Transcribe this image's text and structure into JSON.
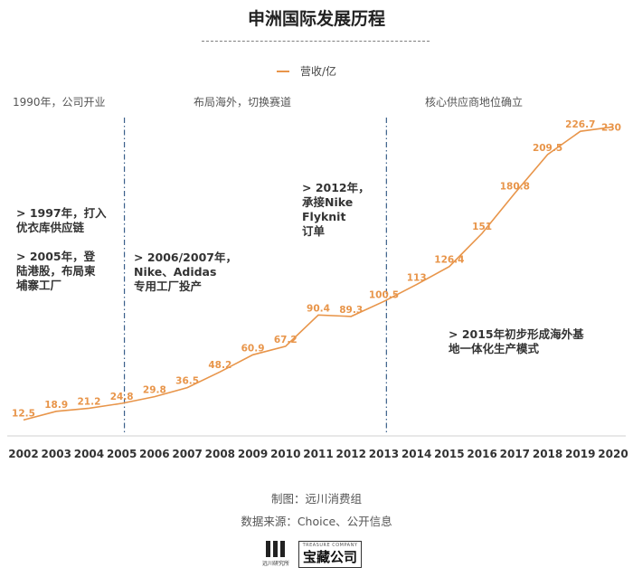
{
  "title": "申洲国际发展历程",
  "legend": {
    "label": "营收/亿",
    "color": "#e8954a"
  },
  "phases": [
    {
      "label": "1990年，公司开业"
    },
    {
      "label": "布局海外，切换赛道"
    },
    {
      "label": "核心供应商地位确立"
    }
  ],
  "notes": [
    {
      "text": "> 1997年，打入\n优衣库供应链"
    },
    {
      "text": ">  2005年，登\n陆港股，布局柬\n埔寨工厂"
    },
    {
      "text": "> 2006/2007年，\nNike、Adidas\n专用工厂投产"
    },
    {
      "text": "> 2012年，\n承接Nike\nFlyknit\n订单"
    },
    {
      "text": "> 2015年初步形成海外基\n地一体化生产模式"
    }
  ],
  "chart_data": {
    "type": "line",
    "title": "申洲国际发展历程",
    "series_name": "营收/亿",
    "categories": [
      "2002",
      "2003",
      "2004",
      "2005",
      "2006",
      "2007",
      "2008",
      "2009",
      "2010",
      "2011",
      "2012",
      "2013",
      "2014",
      "2015",
      "2016",
      "2017",
      "2018",
      "2019",
      "2020"
    ],
    "values": [
      12.5,
      18.9,
      21.2,
      24.8,
      29.8,
      36.5,
      48.2,
      60.9,
      67.2,
      90.4,
      89.3,
      100.5,
      113,
      126.4,
      151,
      180.8,
      209.5,
      226.7,
      230
    ],
    "value_labels": [
      "12.5",
      "18.9",
      "21.2",
      "24.8",
      "29.8",
      "36.5",
      "48.2",
      "60.9",
      "67.2",
      "90.4",
      "89.3",
      "100.5",
      "113",
      "126.4",
      "151",
      "180.8",
      "209.5",
      "226.7",
      "230"
    ],
    "divider_after_years": [
      "2005",
      "2013"
    ],
    "line_color": "#e8954a",
    "label_color": "#e8954a",
    "divider_color": "#3a5f8a"
  },
  "footer": {
    "made_by": "制图：远川消费组",
    "source": "数据来源：Choice、公开信息"
  },
  "logos": {
    "left_small": "远川研究所",
    "right_top": "TREASURE COMPANY",
    "right_main": "宝藏公司"
  }
}
